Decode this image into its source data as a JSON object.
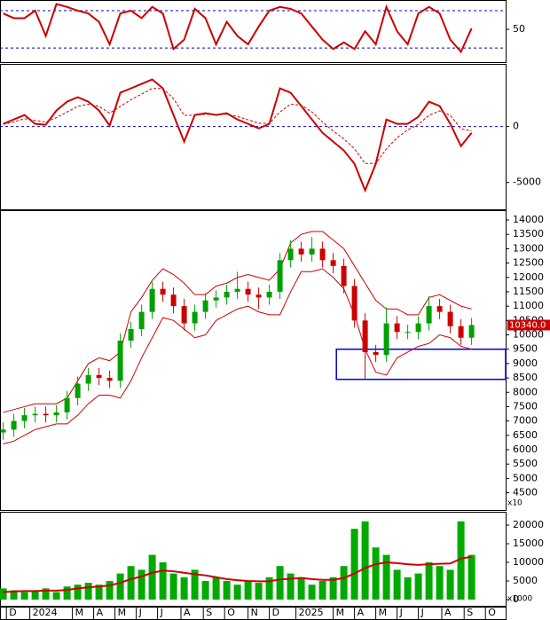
{
  "chart_data": [
    {
      "type": "line",
      "color": "#cc0000",
      "levels": [
        70,
        30
      ],
      "level_color": "#0000cc",
      "ylim": [
        15,
        81.4
      ],
      "yticks": [
        50
      ],
      "values": [
        67,
        62,
        62,
        70,
        43,
        77,
        74,
        70,
        67,
        58,
        34,
        67,
        70,
        62,
        74,
        67,
        29,
        39,
        72,
        62,
        34,
        58,
        43,
        34,
        53,
        70,
        74,
        72,
        67,
        53,
        39,
        29,
        36,
        29,
        48,
        34,
        74,
        48,
        34,
        67,
        74,
        67,
        39,
        26,
        51
      ]
    },
    {
      "type": "line",
      "color": "#cc0000",
      "ylim": [
        -7400,
        5600
      ],
      "yticks": [
        0,
        -5000
      ],
      "values": [
        240,
        630,
        1030,
        240,
        160,
        1430,
        2220,
        2620,
        2220,
        1430,
        80,
        3020,
        3410,
        3810,
        4210,
        3410,
        1030,
        -1350,
        1030,
        1190,
        1030,
        1190,
        630,
        240,
        -160,
        240,
        3410,
        3020,
        1830,
        630,
        -560,
        -1350,
        -2140,
        -3330,
        -5710,
        -3330,
        630,
        240,
        240,
        870,
        2220,
        1830,
        240,
        -1750,
        -560
      ],
      "signal": [
        200,
        400,
        700,
        550,
        400,
        800,
        1300,
        1800,
        2000,
        1800,
        1200,
        1800,
        2400,
        2900,
        3400,
        3400,
        2500,
        1000,
        1000,
        1100,
        1050,
        1100,
        900,
        600,
        300,
        270,
        1300,
        2000,
        1900,
        1300,
        400,
        -400,
        -1100,
        -2000,
        -3300,
        -3300,
        -2000,
        -1000,
        -300,
        200,
        1000,
        1400,
        1000,
        -200,
        -400
      ]
    },
    {
      "type": "candlestick",
      "up_color": "#00a000",
      "down_color": "#cc0000",
      "band_color": "#cc0000",
      "ylim": [
        3900,
        14340
      ],
      "yticks": [
        4500,
        5000,
        5500,
        6000,
        6500,
        7000,
        7500,
        8000,
        8500,
        9000,
        9500,
        10000,
        10500,
        11000,
        11500,
        12000,
        12500,
        13000,
        13500,
        14000
      ],
      "y_unit": "x10",
      "last_price": {
        "value": 10340,
        "label": "10340.0"
      },
      "zone": [
        8450,
        9500
      ],
      "zone_color": "#0000cc",
      "open": [
        6600,
        6700,
        7000,
        7200,
        7250,
        7200,
        7300,
        7800,
        8300,
        8600,
        8500,
        8400,
        9800,
        10200,
        10800,
        11600,
        11400,
        11000,
        10400,
        10800,
        11200,
        11300,
        11500,
        11600,
        11400,
        11300,
        11500,
        12600,
        13000,
        12800,
        13000,
        12600,
        12400,
        11700,
        10500,
        9400,
        9300,
        10400,
        10100,
        10100,
        10400,
        11000,
        10800,
        10300,
        9900
      ],
      "high": [
        6950,
        7250,
        7450,
        7500,
        7500,
        7550,
        8050,
        8550,
        8850,
        8850,
        8750,
        10050,
        10450,
        11050,
        11850,
        11850,
        11650,
        11250,
        11050,
        11450,
        11550,
        11750,
        12200,
        11850,
        11650,
        11750,
        12850,
        13300,
        13250,
        13400,
        13250,
        12850,
        12650,
        11950,
        10750,
        9650,
        10950,
        10650,
        10350,
        10650,
        11350,
        11250,
        11050,
        10550,
        10590
      ],
      "low": [
        6350,
        6450,
        6750,
        6950,
        6950,
        6950,
        7050,
        7550,
        8050,
        8250,
        8150,
        8150,
        9550,
        9950,
        10550,
        11150,
        10750,
        10150,
        10150,
        10550,
        10950,
        11050,
        11250,
        11150,
        10900,
        11050,
        11250,
        12350,
        12550,
        12550,
        12350,
        12150,
        11450,
        10250,
        8450,
        9050,
        9050,
        9850,
        9850,
        9850,
        10150,
        10550,
        10050,
        9650,
        9650
      ],
      "close": [
        6700,
        7000,
        7200,
        7250,
        7200,
        7300,
        7800,
        8300,
        8600,
        8500,
        8400,
        9800,
        10200,
        10800,
        11600,
        11400,
        11000,
        10400,
        10800,
        11200,
        11300,
        11500,
        11600,
        11400,
        11300,
        11500,
        12600,
        13000,
        12800,
        13000,
        12600,
        12400,
        11700,
        10500,
        9400,
        9300,
        10400,
        10100,
        10100,
        10400,
        11000,
        10800,
        10300,
        9900,
        10340
      ],
      "upper_band": [
        7300,
        7400,
        7500,
        7600,
        7600,
        7600,
        7800,
        8400,
        9000,
        9200,
        9100,
        9400,
        10800,
        11300,
        11900,
        12300,
        12100,
        11800,
        11400,
        11400,
        11700,
        11800,
        12000,
        12100,
        12000,
        11900,
        12300,
        13200,
        13500,
        13600,
        13600,
        13300,
        13000,
        12400,
        11800,
        11200,
        10900,
        10900,
        10700,
        10700,
        11300,
        11400,
        11200,
        11000,
        10900
      ],
      "lower_band": [
        6200,
        6300,
        6500,
        6700,
        6800,
        6900,
        6900,
        7200,
        7600,
        7900,
        7900,
        7800,
        8400,
        9200,
        9900,
        10600,
        10500,
        10200,
        9900,
        10000,
        10500,
        10700,
        10900,
        11000,
        10800,
        10700,
        10700,
        11500,
        12200,
        12200,
        12300,
        12000,
        11600,
        10700,
        9500,
        8700,
        8600,
        9200,
        9400,
        9600,
        9700,
        10000,
        9900,
        9600,
        9500
      ]
    },
    {
      "type": "bar",
      "color": "#00aa00",
      "ma_color": "#cc0000",
      "ylim": [
        -1670,
        23570
      ],
      "yticks": [
        0,
        5000,
        10000,
        15000,
        20000
      ],
      "y_unit": "x1000",
      "values": [
        3000,
        2500,
        2000,
        2500,
        3000,
        2000,
        3500,
        4000,
        4500,
        4000,
        5000,
        7000,
        9000,
        8000,
        12000,
        10000,
        7000,
        6000,
        8000,
        5000,
        6000,
        5000,
        4000,
        5000,
        4500,
        6000,
        9000,
        7000,
        6000,
        4000,
        5000,
        6000,
        9000,
        19000,
        21000,
        14000,
        12000,
        8000,
        6000,
        7000,
        10000,
        9000,
        8000,
        21000,
        12000
      ],
      "ma": [
        2000,
        2200,
        2300,
        2300,
        2400,
        2400,
        2600,
        3000,
        3300,
        3500,
        3800,
        4500,
        5500,
        6200,
        7200,
        7800,
        7600,
        7200,
        6800,
        6500,
        6000,
        5500,
        5200,
        5000,
        4900,
        4900,
        5400,
        5600,
        5800,
        5500,
        5300,
        5300,
        5800,
        7000,
        8500,
        9500,
        10000,
        9800,
        9500,
        9300,
        9500,
        9600,
        9700,
        11000,
        11500
      ],
      "xlim": [
        -0.3,
        47.2
      ],
      "xticks": [
        {
          "value": 0.3,
          "label": "D"
        },
        {
          "value": 2.5,
          "label": "2024"
        },
        {
          "value": 6.5,
          "label": "M"
        },
        {
          "value": 8.5,
          "label": "A"
        },
        {
          "value": 10.5,
          "label": "M"
        },
        {
          "value": 12.5,
          "label": "J"
        },
        {
          "value": 14.5,
          "label": "J"
        },
        {
          "value": 16.7,
          "label": "A"
        },
        {
          "value": 18.8,
          "label": "S"
        },
        {
          "value": 20.8,
          "label": "O"
        },
        {
          "value": 23,
          "label": "N"
        },
        {
          "value": 25,
          "label": "D"
        },
        {
          "value": 27.5,
          "label": "2025"
        },
        {
          "value": 31,
          "label": "M"
        },
        {
          "value": 33,
          "label": "A"
        },
        {
          "value": 35,
          "label": "M"
        },
        {
          "value": 37,
          "label": "J"
        },
        {
          "value": 39,
          "label": "J"
        },
        {
          "value": 41.2,
          "label": "A"
        },
        {
          "value": 43.3,
          "label": "S"
        },
        {
          "value": 45.3,
          "label": "O"
        }
      ]
    }
  ]
}
